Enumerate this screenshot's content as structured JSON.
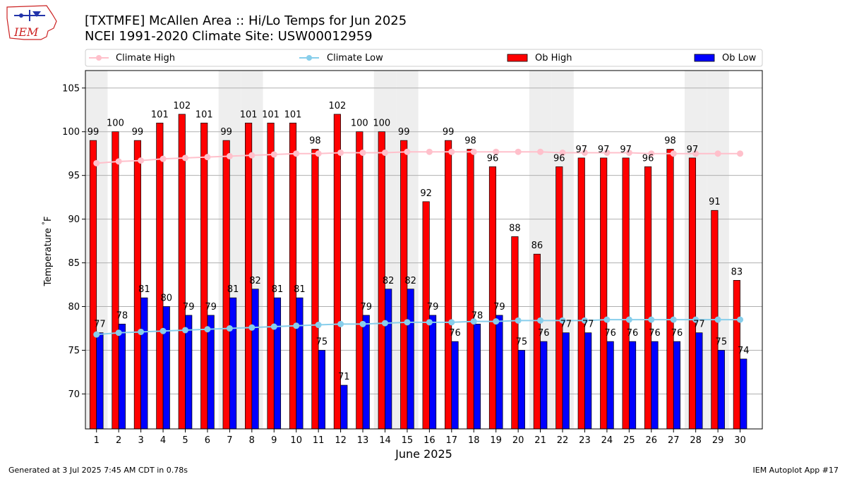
{
  "header": {
    "logo_text": "IEM",
    "title_line1": "[TXTMFE] McAllen Area :: Hi/Lo Temps for Jun 2025",
    "title_line2": "NCEI 1991-2020 Climate Site: USW00012959"
  },
  "legend": {
    "climate_high": "Climate High",
    "climate_low": "Climate Low",
    "ob_high": "Ob High",
    "ob_low": "Ob Low"
  },
  "footer": {
    "generated": "Generated at 3 Jul 2025 7:45 AM CDT in 0.78s",
    "app": "IEM Autoplot App #17"
  },
  "colors": {
    "ob_high": "#ff0000",
    "ob_low": "#0000ff",
    "climate_high": "#ffc0cb",
    "climate_low": "#87ceeb",
    "weekend_band": "#eeeeee"
  },
  "chart_data": {
    "type": "bar",
    "title": "[TXTMFE] McAllen Area :: Hi/Lo Temps for Jun 2025",
    "subtitle": "NCEI 1991-2020 Climate Site: USW00012959",
    "xlabel": "June 2025",
    "ylabel": "Temperature $^\\circ$F",
    "ylim": [
      66,
      107
    ],
    "yticks": [
      70,
      75,
      80,
      85,
      90,
      95,
      100,
      105
    ],
    "grid": "horizontal",
    "legend_placement": "top",
    "categories": [
      "1",
      "2",
      "3",
      "4",
      "5",
      "6",
      "7",
      "8",
      "9",
      "10",
      "11",
      "12",
      "13",
      "14",
      "15",
      "16",
      "17",
      "18",
      "19",
      "20",
      "21",
      "22",
      "23",
      "24",
      "25",
      "26",
      "27",
      "28",
      "29",
      "30"
    ],
    "shaded_days": [
      "1",
      "7",
      "8",
      "14",
      "15",
      "21",
      "22",
      "28",
      "29"
    ],
    "series": [
      {
        "name": "Ob High",
        "type": "bar",
        "values": [
          99,
          100,
          99,
          101,
          102,
          101,
          99,
          101,
          101,
          101,
          98,
          102,
          100,
          100,
          99,
          92,
          99,
          98,
          96,
          88,
          86,
          96,
          97,
          97,
          97,
          96,
          98,
          97,
          91,
          83
        ]
      },
      {
        "name": "Ob Low",
        "type": "bar",
        "values": [
          77,
          78,
          81,
          80,
          79,
          79,
          81,
          82,
          81,
          81,
          75,
          71,
          79,
          82,
          82,
          79,
          76,
          78,
          79,
          75,
          76,
          77,
          77,
          76,
          76,
          76,
          76,
          77,
          75,
          74
        ]
      },
      {
        "name": "Climate High",
        "type": "line",
        "values": [
          96.4,
          96.6,
          96.7,
          96.9,
          97.0,
          97.1,
          97.2,
          97.3,
          97.4,
          97.5,
          97.5,
          97.6,
          97.6,
          97.6,
          97.7,
          97.7,
          97.7,
          97.7,
          97.7,
          97.7,
          97.7,
          97.6,
          97.6,
          97.6,
          97.6,
          97.5,
          97.5,
          97.5,
          97.5,
          97.5
        ]
      },
      {
        "name": "Climate Low",
        "type": "line",
        "values": [
          76.8,
          77.0,
          77.1,
          77.2,
          77.3,
          77.4,
          77.5,
          77.6,
          77.7,
          77.8,
          77.9,
          78.0,
          78.0,
          78.1,
          78.2,
          78.2,
          78.2,
          78.3,
          78.3,
          78.4,
          78.4,
          78.4,
          78.4,
          78.5,
          78.5,
          78.5,
          78.5,
          78.5,
          78.5,
          78.5
        ]
      }
    ]
  }
}
